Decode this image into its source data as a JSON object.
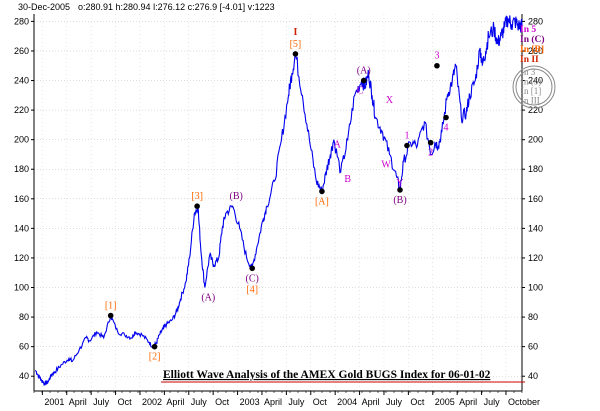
{
  "header": {
    "date": "30-Dec-2005",
    "ohlc": "o:280.91 h:280.94 l:276.12 c:276.9 [-4.01] v:1223"
  },
  "chart_data": {
    "type": "line",
    "title": "Elliott Wave Analysis of the AMEX Gold BUGS Index for 06-01-02",
    "xlabel": "",
    "ylabel": "",
    "ylim": [
      30,
      285
    ],
    "y_ticks": [
      40,
      60,
      80,
      100,
      120,
      140,
      160,
      180,
      200,
      220,
      240,
      260,
      280
    ],
    "x_tick_labels": [
      "2001",
      "April",
      "July",
      "Oct",
      "2002",
      "April",
      "July",
      "Oct",
      "2003",
      "April",
      "July",
      "Oct",
      "2004",
      "April",
      "July",
      "Oct",
      "2005",
      "April",
      "July",
      "October"
    ],
    "grid": true,
    "series": [
      {
        "color": "#0000ee",
        "t": [
          0.2,
          0.7,
          1.0,
          1.5,
          2.0,
          2.5,
          3.0,
          4.0,
          5.0,
          5.5,
          6.5,
          7.5,
          8.0,
          9.0,
          10.0,
          11.0,
          12.0,
          13.0,
          14.0,
          14.5,
          15.5,
          16.5,
          17.0,
          17.5,
          18.0,
          18.5,
          19.0,
          19.8,
          20.5,
          21.0,
          21.8,
          22.3,
          23.0,
          23.5,
          24.0,
          24.5,
          25.2,
          25.8,
          26.5,
          27.0,
          27.5,
          28.5,
          29.5,
          30.5,
          31.3,
          32.0,
          32.8,
          33.4,
          34.5,
          35.5,
          36.5,
          37.0,
          37.5,
          38.5,
          39.5,
          40.5,
          41.3,
          42.0,
          42.5,
          43.0,
          44.0,
          45.0,
          46.0,
          47.0,
          47.5,
          48.0,
          48.5,
          49.0,
          50.0,
          51.0,
          52.0,
          52.5,
          53.0,
          54.0,
          55.0,
          56.0,
          57.0,
          57.5,
          58.0,
          58.5,
          59.3,
          60.0,
          60.5,
          61.3,
          62.0,
          62.5,
          63.3,
          64.0,
          64.3,
          64.8,
          65.2,
          66.0,
          66.5,
          67.0,
          67.5,
          68.0,
          68.5,
          69.0,
          69.5,
          70.0
        ],
        "values": [
          44,
          40,
          38,
          35,
          36,
          41,
          43,
          48,
          52,
          50,
          58,
          66,
          64,
          70,
          66,
          81,
          70,
          68,
          66,
          70,
          68,
          63,
          60,
          62,
          68,
          72,
          75,
          78,
          84,
          92,
          104,
          120,
          150,
          155,
          122,
          100,
          122,
          115,
          120,
          140,
          150,
          155,
          140,
          120,
          113,
          128,
          145,
          155,
          172,
          200,
          230,
          245,
          258,
          230,
          200,
          172,
          165,
          180,
          190,
          200,
          178,
          200,
          230,
          240,
          236,
          245,
          230,
          215,
          205,
          190,
          175,
          166,
          185,
          198,
          196,
          212,
          190,
          198,
          196,
          205,
          230,
          240,
          250,
          215,
          218,
          230,
          240,
          262,
          250,
          260,
          270,
          275,
          265,
          270,
          276,
          282,
          278,
          280,
          277,
          276.9
        ]
      }
    ],
    "annotations": [
      {
        "text": "[1]",
        "t": 11.0,
        "y": 81,
        "color": "#ff6600",
        "pos": "above",
        "dot": true
      },
      {
        "text": "[2]",
        "t": 17.3,
        "y": 60,
        "color": "#ff6600",
        "pos": "below",
        "dot": true
      },
      {
        "text": "[3]",
        "t": 23.4,
        "y": 155,
        "color": "#ff6600",
        "pos": "above",
        "dot": true
      },
      {
        "text": "(A)",
        "t": 25.0,
        "y": 100,
        "color": "#800080",
        "pos": "below",
        "dot": false
      },
      {
        "text": "(B)",
        "t": 29.0,
        "y": 155,
        "color": "#800080",
        "pos": "above",
        "dot": false
      },
      {
        "text": "(C)",
        "t": 31.3,
        "y": 113,
        "color": "#800080",
        "pos": "below",
        "dot": true
      },
      {
        "text": "[4]",
        "t": 31.3,
        "y": 113,
        "color": "#ff6600",
        "pos": "below2",
        "dot": false
      },
      {
        "text": "I",
        "t": 37.5,
        "y": 258,
        "color": "#cc2200",
        "pos": "above2",
        "dot": true
      },
      {
        "text": "[5]",
        "t": 37.5,
        "y": 258,
        "color": "#ff6600",
        "pos": "above",
        "dot": false
      },
      {
        "text": "A",
        "t": 43.5,
        "y": 190,
        "color": "#cc00cc",
        "pos": "above",
        "dot": false
      },
      {
        "text": "[A]",
        "t": 41.3,
        "y": 165,
        "color": "#ff6600",
        "pos": "below",
        "dot": true
      },
      {
        "text": "B",
        "t": 45.0,
        "y": 180,
        "color": "#cc00cc",
        "pos": "below",
        "dot": false
      },
      {
        "text": "(A)",
        "t": 47.3,
        "y": 240,
        "color": "#800080",
        "pos": "above",
        "dot": true
      },
      {
        "text": "C",
        "t": 46.8,
        "y": 240,
        "color": "#cc00cc",
        "pos": "below",
        "dot": false
      },
      {
        "text": "X",
        "t": 51.0,
        "y": 220,
        "color": "#cc00cc",
        "pos": "above",
        "dot": false
      },
      {
        "text": "W",
        "t": 50.5,
        "y": 190,
        "color": "#cc00cc",
        "pos": "below",
        "dot": false
      },
      {
        "text": "Y",
        "t": 52.5,
        "y": 166,
        "color": "#cc00cc",
        "pos": "above-tight",
        "dot": true
      },
      {
        "text": "(B)",
        "t": 52.5,
        "y": 166,
        "color": "#800080",
        "pos": "below",
        "dot": false
      },
      {
        "text": "1",
        "t": 53.5,
        "y": 196,
        "color": "#cc00cc",
        "pos": "above",
        "dot": true
      },
      {
        "text": "2",
        "t": 56.9,
        "y": 198,
        "color": "#cc00cc",
        "pos": "below",
        "dot": true
      },
      {
        "text": "3",
        "t": 57.8,
        "y": 250,
        "color": "#cc00cc",
        "pos": "above",
        "dot": true
      },
      {
        "text": "4",
        "t": 59.1,
        "y": 215,
        "color": "#cc00cc",
        "pos": "below",
        "dot": true
      }
    ],
    "legend": {
      "placement": "top-right",
      "upper": [
        {
          "text": "In 5",
          "color": "#cc00cc"
        },
        {
          "text": "In (C)",
          "color": "#800080"
        },
        {
          "text": "In [B]",
          "color": "#ff6600"
        },
        {
          "text": "In II",
          "color": "#cc2200"
        }
      ],
      "lower": [
        {
          "text": "In 3",
          "color": "#888888"
        },
        {
          "text": "In (5)",
          "color": "#888888"
        },
        {
          "text": "In [1]",
          "color": "#888888"
        },
        {
          "text": "In III",
          "color": "#888888"
        }
      ]
    }
  }
}
